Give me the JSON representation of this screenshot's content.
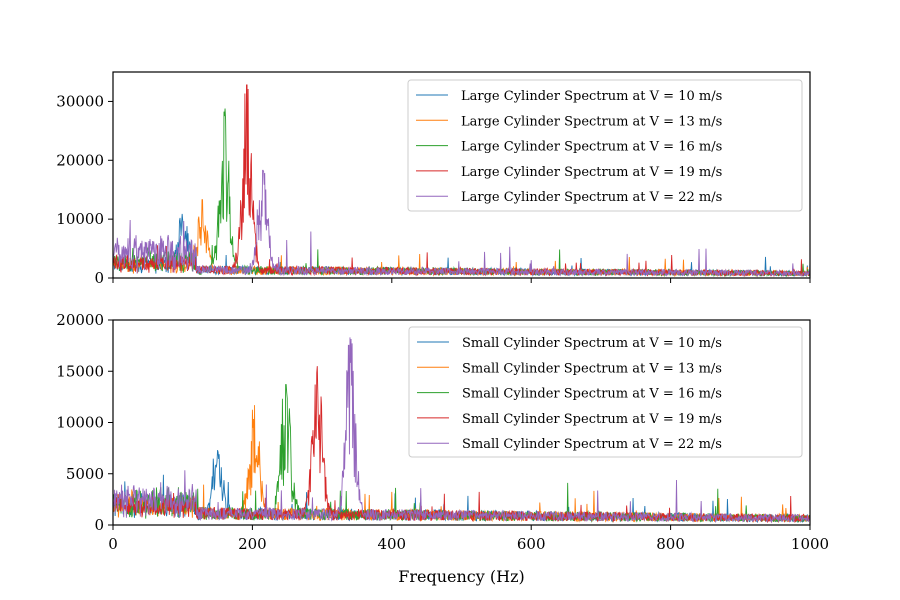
{
  "chart_data": [
    {
      "type": "line",
      "subplot": "top",
      "xlim": [
        0,
        1000
      ],
      "ylim": [
        0,
        35000
      ],
      "xticks": [
        0,
        200,
        400,
        600,
        800,
        1000
      ],
      "yticks": [
        0,
        10000,
        20000,
        30000
      ],
      "ytick_labels": [
        "0",
        "10000",
        "20000",
        "30000"
      ],
      "show_xtick_labels": false,
      "legend_position": "upper-right",
      "grid": false,
      "series": [
        {
          "name": "Large Cylinder Spectrum at V = 10 m/s",
          "color": "#1f77b4",
          "baseline": 1800,
          "peak_freq": 100,
          "peak_value": 9800,
          "noise_max": 3500
        },
        {
          "name": "Large Cylinder Spectrum at V = 13 m/s",
          "color": "#ff7f0e",
          "baseline": 1800,
          "peak_freq": 128,
          "peak_value": 13300,
          "noise_max": 3500
        },
        {
          "name": "Large Cylinder Spectrum at V = 16 m/s",
          "color": "#2ca02c",
          "baseline": 1800,
          "peak_freq": 160,
          "peak_value": 27500,
          "noise_max": 5200
        },
        {
          "name": "Large Cylinder Spectrum at V = 19 m/s",
          "color": "#d62728",
          "baseline": 1800,
          "peak_freq": 192,
          "peak_value": 32800,
          "noise_max": 4200
        },
        {
          "name": "Large Cylinder Spectrum at V = 22 m/s",
          "color": "#9467bd",
          "baseline": 1800,
          "peak_freq": 215,
          "peak_value": 18300,
          "noise_max": 7800
        }
      ]
    },
    {
      "type": "line",
      "subplot": "bottom",
      "xlim": [
        0,
        1000
      ],
      "ylim": [
        0,
        20000
      ],
      "xticks": [
        0,
        200,
        400,
        600,
        800,
        1000
      ],
      "xtick_labels": [
        "0",
        "200",
        "400",
        "600",
        "800",
        "1000"
      ],
      "yticks": [
        0,
        5000,
        10000,
        15000,
        20000
      ],
      "ytick_labels": [
        "0",
        "5000",
        "10000",
        "15000",
        "20000"
      ],
      "xlabel": "Frequency (Hz)",
      "legend_position": "upper-right",
      "grid": false,
      "series": [
        {
          "name": "Small Cylinder Spectrum at V = 10 m/s",
          "color": "#1f77b4",
          "baseline": 1500,
          "peak_freq": 150,
          "peak_value": 7300,
          "noise_max": 3000
        },
        {
          "name": "Small Cylinder Spectrum at V = 13 m/s",
          "color": "#ff7f0e",
          "baseline": 1500,
          "peak_freq": 203,
          "peak_value": 11700,
          "noise_max": 3000
        },
        {
          "name": "Small Cylinder Spectrum at V = 16 m/s",
          "color": "#2ca02c",
          "baseline": 1500,
          "peak_freq": 248,
          "peak_value": 13700,
          "noise_max": 3800
        },
        {
          "name": "Small Cylinder Spectrum at V = 19 m/s",
          "color": "#d62728",
          "baseline": 1500,
          "peak_freq": 293,
          "peak_value": 15500,
          "noise_max": 3000
        },
        {
          "name": "Small Cylinder Spectrum at V = 22 m/s",
          "color": "#9467bd",
          "baseline": 1500,
          "peak_freq": 340,
          "peak_value": 18300,
          "noise_max": 4200
        }
      ]
    }
  ]
}
